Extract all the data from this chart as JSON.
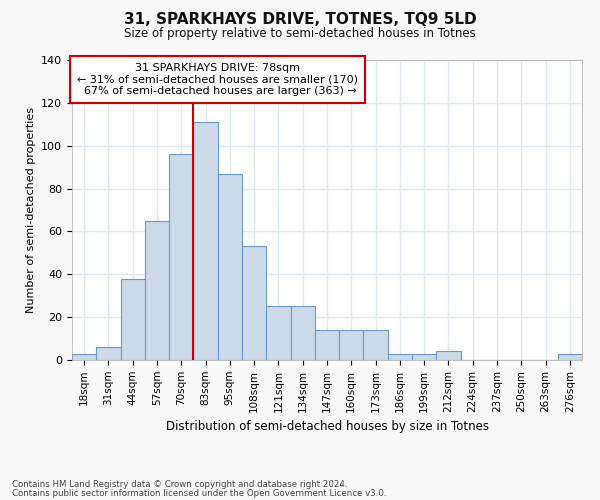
{
  "title": "31, SPARKHAYS DRIVE, TOTNES, TQ9 5LD",
  "subtitle": "Size of property relative to semi-detached houses in Totnes",
  "xlabel": "Distribution of semi-detached houses by size in Totnes",
  "ylabel": "Number of semi-detached properties",
  "bins": [
    "18sqm",
    "31sqm",
    "44sqm",
    "57sqm",
    "70sqm",
    "83sqm",
    "95sqm",
    "108sqm",
    "121sqm",
    "134sqm",
    "147sqm",
    "160sqm",
    "173sqm",
    "186sqm",
    "199sqm",
    "212sqm",
    "224sqm",
    "237sqm",
    "250sqm",
    "263sqm",
    "276sqm"
  ],
  "values": [
    3,
    6,
    38,
    65,
    96,
    111,
    87,
    53,
    25,
    25,
    14,
    14,
    14,
    3,
    3,
    4,
    0,
    0,
    0,
    0,
    3
  ],
  "bar_color": "#ccd9e8",
  "bar_edge_color": "#6699cc",
  "property_label": "31 SPARKHAYS DRIVE: 78sqm",
  "pct_smaller": 31,
  "n_smaller": 170,
  "pct_larger": 67,
  "n_larger": 363,
  "vline_x_index": 4.5,
  "annotation_box_color": "#cc0000",
  "background_color": "#ffffff",
  "fig_background": "#f8f8f8",
  "grid_color": "#dde8f0",
  "ylim": [
    0,
    140
  ],
  "yticks": [
    0,
    20,
    40,
    60,
    80,
    100,
    120,
    140
  ],
  "footer1": "Contains HM Land Registry data © Crown copyright and database right 2024.",
  "footer2": "Contains public sector information licensed under the Open Government Licence v3.0."
}
